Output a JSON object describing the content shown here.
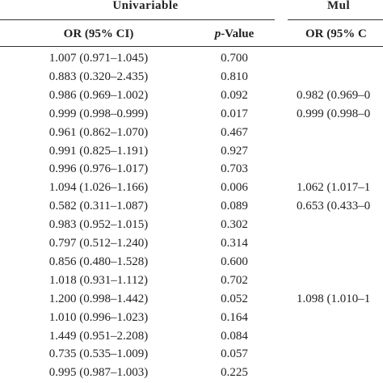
{
  "header": {
    "groups": [
      "Univariable",
      "Mul"
    ],
    "columns": {
      "or": "OR (95% CI)",
      "p_value": {
        "italic": "p",
        "rest": "-Value"
      },
      "or_multi": "OR (95% C"
    }
  },
  "table": {
    "rows": [
      [
        "1.007 (0.971–1.045)",
        "0.700",
        null
      ],
      [
        "0.883 (0.320–2.435)",
        "0.810",
        null
      ],
      [
        "0.986 (0.969–1.002)",
        "0.092",
        "0.982 (0.969–0"
      ],
      [
        "0.999 (0.998–0.999)",
        "0.017",
        "0.999 (0.998–0"
      ],
      [
        "0.961 (0.862–1.070)",
        "0.467",
        null
      ],
      [
        "0.991 (0.825–1.191)",
        "0.927",
        null
      ],
      [
        "0.996 (0.976–1.017)",
        "0.703",
        null
      ],
      [
        "1.094 (1.026–1.166)",
        "0.006",
        "1.062 (1.017–1"
      ],
      [
        "0.582 (0.311–1.087)",
        "0.089",
        "0.653 (0.433–0"
      ],
      [
        "0.983 (0.952–1.015)",
        "0.302",
        null
      ],
      [
        "0.797 (0.512–1.240)",
        "0.314",
        null
      ],
      [
        "0.856 (0.480–1.528)",
        "0.600",
        null
      ],
      [
        "1.018 (0.931–1.112)",
        "0.702",
        null
      ],
      [
        "1.200 (0.998–1.442)",
        "0.052",
        "1.098 (1.010–1"
      ],
      [
        "1.010 (0.996–1.023)",
        "0.164",
        null
      ],
      [
        "1.449 (0.951–2.208)",
        "0.084",
        null
      ],
      [
        "0.735 (0.535–1.009)",
        "0.057",
        null
      ],
      [
        "0.995 (0.987–1.003)",
        "0.225",
        null
      ]
    ]
  }
}
